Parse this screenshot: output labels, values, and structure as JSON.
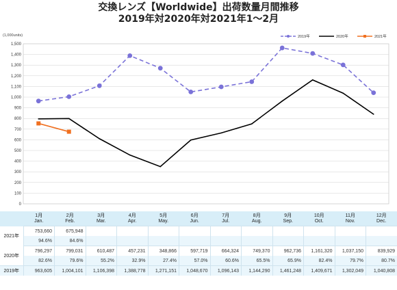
{
  "chart_data": {
    "type": "line",
    "title": "交換レンズ【Worldwide】出荷数量月間推移",
    "subtitle": "2019年対2020年対2021年1～2月",
    "unit_label": "(1,000units)",
    "ylim": [
      0,
      1500
    ],
    "ytick_step": 100,
    "grid": true,
    "legend_position": "top-right",
    "categories": [
      {
        "jp": "1月",
        "en": "Jan."
      },
      {
        "jp": "2月",
        "en": "Feb."
      },
      {
        "jp": "3月",
        "en": "Mar."
      },
      {
        "jp": "4月",
        "en": "Apr."
      },
      {
        "jp": "5月",
        "en": "May."
      },
      {
        "jp": "6月",
        "en": "Jun."
      },
      {
        "jp": "7月",
        "en": "Jul."
      },
      {
        "jp": "8月",
        "en": "Aug."
      },
      {
        "jp": "9月",
        "en": "Sep."
      },
      {
        "jp": "10月",
        "en": "Oct."
      },
      {
        "jp": "11月",
        "en": "Nov."
      },
      {
        "jp": "12月",
        "en": "Dec."
      }
    ],
    "series": [
      {
        "name": "2019年",
        "color": "#7a72d8",
        "style": "dashed-circle",
        "values": [
          963.605,
          1004.101,
          1106.398,
          1388.778,
          1271.151,
          1048.67,
          1096.143,
          1144.29,
          1461.248,
          1409.671,
          1302.049,
          1040.808
        ]
      },
      {
        "name": "2020年",
        "color": "#000000",
        "style": "solid-diamond",
        "values": [
          796.297,
          799.031,
          610.487,
          457.231,
          348.866,
          597.719,
          664.324,
          749.37,
          962.736,
          1161.32,
          1037.15,
          839.929
        ]
      },
      {
        "name": "2021年",
        "color": "#f07020",
        "style": "solid-square",
        "values": [
          753.66,
          675.948,
          null,
          null,
          null,
          null,
          null,
          null,
          null,
          null,
          null,
          null
        ]
      }
    ]
  },
  "table": {
    "rows": [
      {
        "label": "2021年",
        "values": [
          "753,660",
          "675,948",
          "",
          "",
          "",
          "",
          "",
          "",
          "",
          "",
          "",
          ""
        ],
        "pct": [
          "94.6%",
          "84.6%",
          "",
          "",
          "",
          "",
          "",
          "",
          "",
          "",
          "",
          ""
        ]
      },
      {
        "label": "2020年",
        "values": [
          "796,297",
          "799,031",
          "610,487",
          "457,231",
          "348,866",
          "597,719",
          "664,324",
          "749,370",
          "962,736",
          "1,161,320",
          "1,037,150",
          "839,929"
        ],
        "pct": [
          "82.6%",
          "79.6%",
          "55.2%",
          "32.9%",
          "27.4%",
          "57.0%",
          "60.6%",
          "65.5%",
          "65.9%",
          "82.4%",
          "79.7%",
          "80.7%"
        ]
      },
      {
        "label": "2019年",
        "values": [
          "963,605",
          "1,004,101",
          "1,106,398",
          "1,388,778",
          "1,271,151",
          "1,048,670",
          "1,096,143",
          "1,144,290",
          "1,461,248",
          "1,409,671",
          "1,302,049",
          "1,040,808"
        ]
      }
    ]
  }
}
